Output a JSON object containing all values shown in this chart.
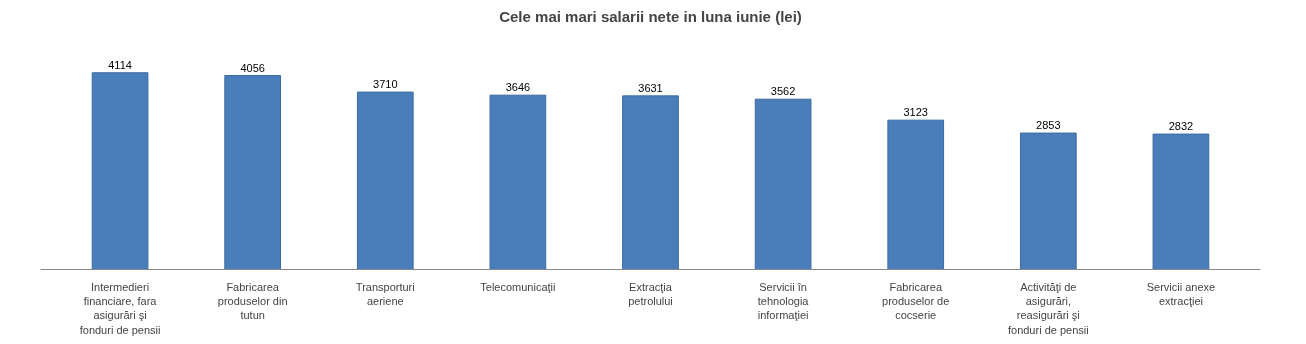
{
  "chart_data": {
    "type": "bar",
    "title": "Cele mai mari salarii nete in luna iunie (lei)",
    "categories": [
      "Intermedieri financiare, fara asigurări şi fonduri de pensii",
      "Fabricarea produselor din tutun",
      "Transporturi aeriene",
      "Telecomunicaţii",
      "Extracţia petrolului",
      "Servicii în tehnologia informaţiei",
      "Fabricarea produselor de cocserie",
      "Activităţi de asigurări, reasigurări şi fonduri de pensii",
      "Servicii anexe extracţiei"
    ],
    "values": [
      4114,
      4056,
      3710,
      3646,
      3631,
      3562,
      3123,
      2853,
      2832
    ],
    "color": "#4a7ebb",
    "data_labels": true
  }
}
